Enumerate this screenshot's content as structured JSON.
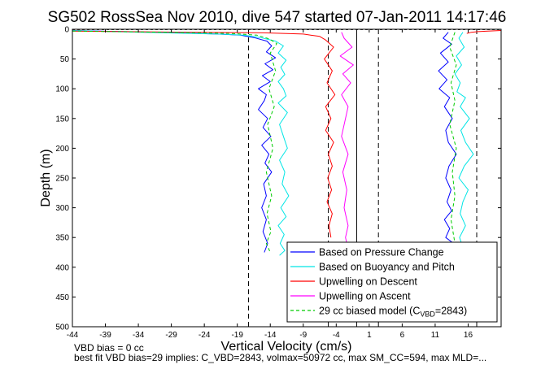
{
  "chart_data": {
    "type": "line",
    "title": "SG502 RossSea Nov 2010, dive 547 started 07-Jan-2011 14:17:46",
    "xlabel": "Vertical Velocity (cm/s)",
    "ylabel": "Depth (m)",
    "xlim": [
      -44,
      21
    ],
    "ylim": [
      0,
      500
    ],
    "y_reversed": true,
    "grid": false,
    "xticks": [
      -44,
      -39,
      -34,
      -29,
      -24,
      -19,
      -14,
      -9,
      -4,
      1,
      6,
      11,
      16
    ],
    "yticks": [
      0,
      50,
      100,
      150,
      200,
      250,
      300,
      350,
      400,
      450,
      500
    ],
    "legend_position": "bottom-right",
    "reference_lines": {
      "solid": [
        -0.9
      ],
      "dashed": [
        -17.3,
        -5.2,
        2.4,
        17.3
      ]
    },
    "series": [
      {
        "name": "Based on Pressure Change",
        "color": "#0000ff",
        "style": "solid",
        "segments": [
          {
            "x": [
              -44,
              -36,
              -28,
              -22,
              -18.5,
              -16.5,
              -14.5,
              -13.8,
              -14.6,
              -13.2,
              -14.8,
              -13.6,
              -15.2,
              -14.0,
              -15.8,
              -14.6,
              -14.9,
              -15.8,
              -14.4,
              -15.1,
              -13.9,
              -15.3,
              -14.2,
              -14.8,
              -13.8,
              -15.0,
              -14.6,
              -15.3,
              -14.6,
              -15.1,
              -14.4,
              -14.9
            ],
            "y": [
              2,
              4,
              6,
              8,
              10,
              14,
              20,
              28,
              38,
              48,
              58,
              68,
              78,
              88,
              100,
              110,
              120,
              135,
              150,
              165,
              180,
              195,
              210,
              225,
              240,
              260,
              280,
              300,
              320,
              340,
              360,
              375
            ]
          },
          {
            "x": [
              13,
              12.2,
              13.5,
              11.8,
              13.0,
              11.5,
              12.8,
              11.6,
              13.2,
              12.4,
              13.6,
              12.6,
              13.0,
              14.2,
              13.1,
              12.6,
              13.4,
              12.8,
              13.5,
              12.4,
              13.2,
              12.6,
              13.8,
              12.7
            ],
            "y": [
              5,
              15,
              25,
              40,
              55,
              70,
              85,
              100,
              115,
              130,
              150,
              170,
              190,
              210,
              230,
              250,
              270,
              290,
              305,
              320,
              335,
              350,
              360,
              370
            ]
          }
        ]
      },
      {
        "name": "Based on Buoyancy and Pitch",
        "color": "#00e5e5",
        "style": "solid",
        "segments": [
          {
            "x": [
              -44,
              -38,
              -30,
              -22,
              -18,
              -15.5,
              -13.2,
              -12.0,
              -12.8,
              -11.6,
              -12.4,
              -11.8,
              -12.8,
              -12.0,
              -11.6,
              -12.8,
              -11.4,
              -12.6,
              -12.0,
              -11.4,
              -12.6,
              -11.8,
              -12.2,
              -11.2,
              -12.4,
              -11.6,
              -12.8,
              -11.9,
              -12.5,
              -11.8,
              -12.6
            ],
            "y": [
              2,
              4,
              6,
              8,
              10,
              14,
              20,
              28,
              40,
              52,
              64,
              76,
              88,
              100,
              112,
              124,
              140,
              160,
              180,
              200,
              220,
              240,
              260,
              280,
              300,
              315,
              330,
              345,
              360,
              372,
              380
            ]
          },
          {
            "x": [
              15.2,
              14.6,
              15.4,
              14.2,
              15.0,
              14.0,
              14.8,
              14.3,
              15.6,
              14.8,
              16.2,
              14.9,
              15.6,
              16.8,
              15.4,
              14.6,
              16.0,
              15.2,
              14.8,
              15.6,
              14.7,
              15.3
            ],
            "y": [
              5,
              15,
              30,
              45,
              60,
              75,
              90,
              105,
              115,
              130,
              150,
              170,
              190,
              210,
              230,
              250,
              270,
              290,
              310,
              330,
              350,
              370
            ]
          }
        ]
      },
      {
        "name": "Upwelling on Descent",
        "color": "#ff0000",
        "style": "solid",
        "segments": [
          {
            "x": [
              -44,
              -36,
              -26,
              -15,
              -9,
              -6.5,
              -5.6,
              -4.4,
              -5.8,
              -4.6,
              -5.4,
              -4.2,
              -5.6,
              -4.8,
              -5.6,
              -4.4,
              -5.2,
              -4.6,
              -5.3,
              -4.7,
              -5.4,
              -4.6,
              -5.1,
              -4.8
            ],
            "y": [
              3,
              4,
              5,
              6,
              8,
              12,
              18,
              30,
              50,
              70,
              90,
              110,
              130,
              150,
              170,
              190,
              210,
              230,
              250,
              270,
              290,
              310,
              330,
              350
            ]
          },
          {
            "x": [
              21,
              19,
              17.5,
              16.5,
              15.8
            ],
            "y": [
              2,
              3,
              4,
              5,
              7
            ]
          }
        ]
      },
      {
        "name": "Upwelling on Ascent",
        "color": "#ff00ff",
        "style": "solid",
        "segments": [
          {
            "x": [
              -3.2,
              -2.8,
              -1.6,
              -3.4,
              -1.4,
              -3.0,
              -1.8,
              -3.2,
              -2.2,
              -2.6,
              -3.2,
              -2.2,
              -3.0,
              -2.4,
              -2.8,
              -2.2,
              -2.6,
              -2.3
            ],
            "y": [
              5,
              15,
              30,
              45,
              60,
              75,
              90,
              110,
              130,
              150,
              180,
              210,
              240,
              270,
              300,
              330,
              350,
              365
            ]
          }
        ]
      },
      {
        "name": "29 cc biased model (C_VBD=2843)",
        "color": "#00cc00",
        "style": "dashed",
        "segments": [
          {
            "x": [
              -44,
              -30,
              -20,
              -16,
              -14.2,
              -13.0,
              -14.0,
              -13.2,
              -14.2,
              -13.4,
              -14.4,
              -13.6,
              -14.6,
              -13.8,
              -14.5,
              -13.9,
              -14.6,
              -14.0
            ],
            "y": [
              3,
              5,
              7,
              10,
              16,
              24,
              40,
              70,
              100,
              130,
              160,
              200,
              240,
              280,
              310,
              340,
              360,
              375
            ]
          },
          {
            "x": [
              14.0,
              13.2,
              14.2,
              13.4,
              14.0,
              13.2,
              14.2,
              13.6,
              14.0,
              13.4,
              14.0
            ],
            "y": [
              5,
              30,
              60,
              90,
              120,
              160,
              200,
              240,
              280,
              320,
              360
            ]
          }
        ]
      }
    ],
    "legend_entries": [
      "Based on Pressure Change",
      "Based on Buoyancy and Pitch",
      "Upwelling on Descent",
      "Upwelling on Ascent",
      "29 cc biased model (C"
    ],
    "legend_sub_parts": {
      "subscript": "VBD",
      "suffix": "=2843)"
    }
  },
  "notes": {
    "vbd_bias": "VBD bias = 0 cc",
    "best_fit": "best fit VBD bias=29 implies: C_VBD=2843, volmax=50972 cc, max SM_CC=594, max MLD=..."
  }
}
